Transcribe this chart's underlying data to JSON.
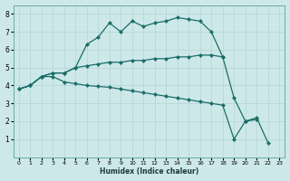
{
  "xlabel": "Humidex (Indice chaleur)",
  "background_color": "#cde8e8",
  "grid_color": "#b8d8d8",
  "line_color": "#1a6e6a",
  "xlim": [
    -0.5,
    23.5
  ],
  "ylim": [
    0,
    8.5
  ],
  "xticks": [
    0,
    1,
    2,
    3,
    4,
    5,
    6,
    7,
    8,
    9,
    10,
    11,
    12,
    13,
    14,
    15,
    16,
    17,
    18,
    19,
    20,
    21,
    22,
    23
  ],
  "yticks": [
    1,
    2,
    3,
    4,
    5,
    6,
    7,
    8
  ],
  "line1_x": [
    0,
    1,
    2,
    3,
    4,
    5,
    6,
    7,
    8,
    9,
    10,
    11,
    12,
    13,
    14,
    15,
    16,
    17,
    18
  ],
  "line1_y": [
    3.8,
    4.0,
    4.5,
    4.7,
    4.7,
    5.0,
    6.3,
    6.7,
    7.5,
    7.0,
    7.6,
    7.3,
    7.5,
    7.6,
    7.8,
    7.7,
    7.6,
    7.0,
    5.6
  ],
  "line2_x": [
    0,
    1,
    2,
    3,
    4,
    5,
    6,
    7,
    8,
    9,
    10,
    11,
    12,
    13,
    14,
    15,
    16,
    17,
    18,
    19,
    20,
    21
  ],
  "line2_y": [
    3.8,
    4.0,
    4.5,
    4.7,
    4.7,
    5.0,
    5.1,
    5.2,
    5.3,
    5.3,
    5.4,
    5.4,
    5.5,
    5.5,
    5.6,
    5.6,
    5.7,
    5.7,
    5.6,
    3.3,
    2.0,
    2.1
  ],
  "line3_x": [
    0,
    1,
    2,
    3,
    4,
    5,
    6,
    7,
    8,
    9,
    10,
    11,
    12,
    13,
    14,
    15,
    16,
    17,
    18,
    19,
    20,
    21,
    22
  ],
  "line3_y": [
    3.8,
    4.0,
    4.5,
    4.5,
    4.2,
    4.1,
    4.0,
    3.95,
    3.9,
    3.8,
    3.7,
    3.6,
    3.5,
    3.4,
    3.3,
    3.2,
    3.1,
    3.0,
    2.9,
    1.0,
    2.0,
    2.2,
    0.8
  ],
  "marker": "D",
  "marker_size": 2.0,
  "linewidth": 0.9
}
